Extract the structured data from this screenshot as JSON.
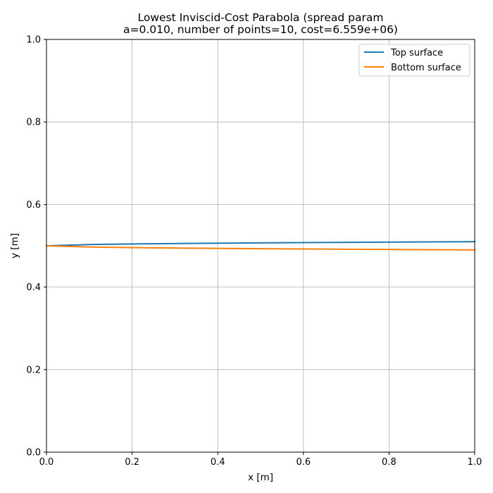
{
  "chart_data": {
    "type": "line",
    "title_line1": "Lowest Inviscid-Cost Parabola (spread param",
    "title_line2": "a=0.010, number of points=10, cost=6.559e+06)",
    "xlabel": "x [m]",
    "ylabel": "y [m]",
    "xlim": [
      0,
      1
    ],
    "ylim": [
      0,
      1
    ],
    "xticks": [
      0.0,
      0.2,
      0.4,
      0.6,
      0.8,
      1.0
    ],
    "yticks": [
      0.0,
      0.2,
      0.4,
      0.6,
      0.8,
      1.0
    ],
    "xtick_labels": [
      "0.0",
      "0.2",
      "0.4",
      "0.6",
      "0.8",
      "1.0"
    ],
    "ytick_labels": [
      "0.0",
      "0.2",
      "0.4",
      "0.6",
      "0.8",
      "1.0"
    ],
    "grid": true,
    "legend_position": "top-right",
    "series": [
      {
        "name": "Top surface",
        "color": "#1f77b4",
        "x": [
          0.0,
          0.111,
          0.222,
          0.333,
          0.444,
          0.556,
          0.667,
          0.778,
          0.889,
          1.0
        ],
        "y": [
          0.5,
          0.5033,
          0.5047,
          0.5058,
          0.5067,
          0.5075,
          0.5082,
          0.5088,
          0.5094,
          0.51
        ]
      },
      {
        "name": "Bottom surface",
        "color": "#ff7f0e",
        "x": [
          0.0,
          0.111,
          0.222,
          0.333,
          0.444,
          0.556,
          0.667,
          0.778,
          0.889,
          1.0
        ],
        "y": [
          0.5,
          0.4967,
          0.4953,
          0.4942,
          0.4933,
          0.4925,
          0.4918,
          0.4912,
          0.4906,
          0.49
        ]
      }
    ]
  }
}
